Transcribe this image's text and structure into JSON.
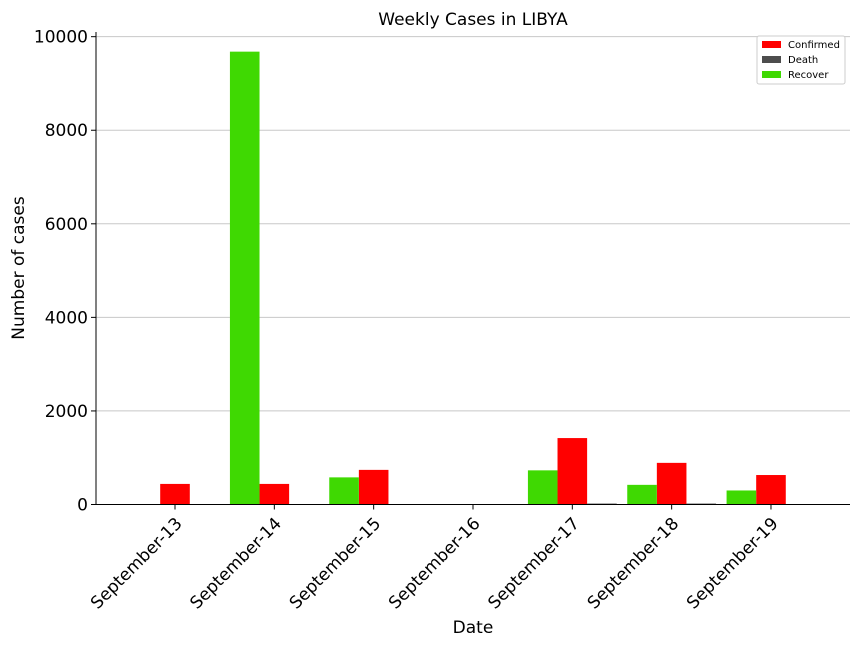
{
  "chart_data": {
    "type": "bar",
    "title": "Weekly Cases in LIBYA",
    "xlabel": "Date",
    "ylabel": "Number of cases",
    "categories": [
      "September-13",
      "September-14",
      "September-15",
      "September-16",
      "September-17",
      "September-18",
      "September-19"
    ],
    "series": [
      {
        "name": "Confirmed",
        "color": "#ff0000",
        "values": [
          440,
          440,
          740,
          0,
          1420,
          890,
          630
        ]
      },
      {
        "name": "Death",
        "color": "#4d4d4d",
        "values": [
          0,
          0,
          0,
          0,
          20,
          20,
          10
        ]
      },
      {
        "name": "Recover",
        "color": "#3fd902",
        "values": [
          0,
          9680,
          580,
          0,
          730,
          420,
          300
        ]
      }
    ],
    "ylim": [
      0,
      10100
    ],
    "yticks": [
      0,
      2000,
      4000,
      6000,
      8000,
      10000
    ],
    "grid": "y",
    "legend_position": "top-right"
  }
}
